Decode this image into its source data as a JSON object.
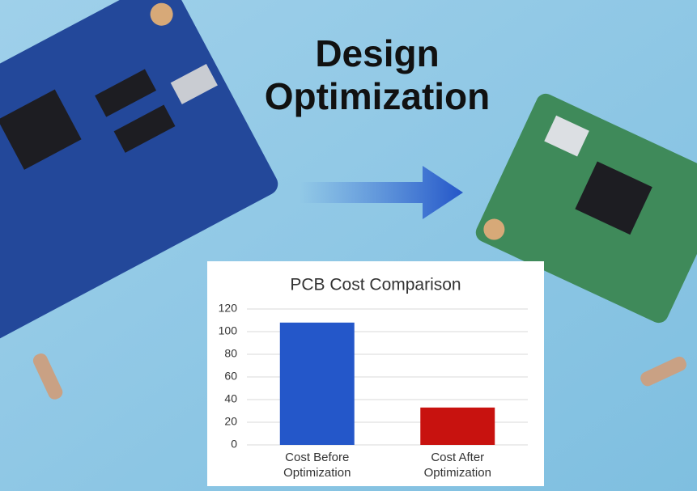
{
  "heading": {
    "lines": [
      "Design",
      "Optimization"
    ]
  },
  "chart_data": {
    "type": "bar",
    "title": "PCB Cost Comparison",
    "categories": [
      "Cost Before\nOptimization",
      "Cost After\nOptimization"
    ],
    "values": [
      108,
      33
    ],
    "colors": [
      "#2457c9",
      "#c8120f"
    ],
    "ylim": [
      0,
      120
    ],
    "yticks": [
      0,
      20,
      40,
      60,
      80,
      100,
      120
    ],
    "grid": true
  }
}
